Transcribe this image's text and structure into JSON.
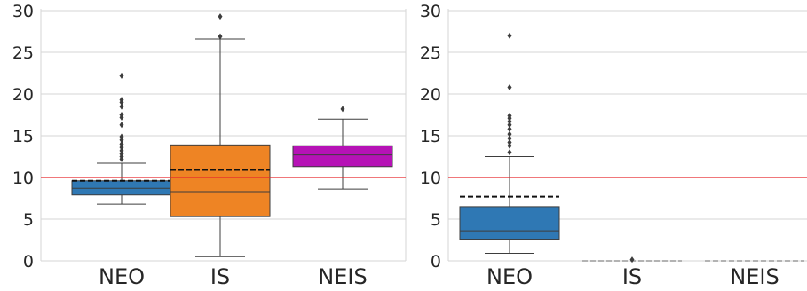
{
  "chart_data": [
    {
      "type": "box",
      "categories": [
        "NEO",
        "IS",
        "NEIS"
      ],
      "yticks": [
        0,
        5,
        10,
        15,
        20,
        25,
        30
      ],
      "ylim": [
        0,
        30
      ],
      "grid": true,
      "reference_line": {
        "y": 10,
        "color": "#e8262a"
      },
      "colors": [
        "#2f78b4",
        "#ee8424",
        "#b612b6"
      ],
      "boxes": [
        {
          "category": "NEO",
          "whisker_low": 6.8,
          "q1": 7.9,
          "median": 8.7,
          "q3": 9.6,
          "whisker_high": 11.7,
          "mean": 9.6,
          "outliers": [
            12.2,
            12.5,
            12.8,
            13.2,
            13.6,
            14.0,
            14.5,
            14.9,
            16.3,
            17.2,
            17.5,
            18.5,
            19.0,
            19.3,
            22.2
          ]
        },
        {
          "category": "IS",
          "whisker_low": 0.5,
          "q1": 5.3,
          "median": 8.3,
          "q3": 13.9,
          "whisker_high": 26.6,
          "mean": 10.9,
          "outliers": [
            26.9,
            29.3
          ]
        },
        {
          "category": "NEIS",
          "whisker_low": 8.6,
          "q1": 11.3,
          "median": 12.7,
          "q3": 13.8,
          "whisker_high": 17.0,
          "mean": null,
          "outliers": [
            18.2
          ]
        }
      ]
    },
    {
      "type": "box",
      "categories": [
        "NEO",
        "IS",
        "NEIS"
      ],
      "yticks": [
        0,
        5,
        10,
        15,
        20,
        25,
        30
      ],
      "ylim": [
        0,
        30
      ],
      "grid": true,
      "reference_line": {
        "y": 10,
        "color": "#e8262a"
      },
      "colors": [
        "#2f78b4",
        "#ee8424",
        "#b612b6"
      ],
      "boxes": [
        {
          "category": "NEO",
          "whisker_low": 0.9,
          "q1": 2.6,
          "median": 3.6,
          "q3": 6.5,
          "whisker_high": 12.5,
          "mean": 7.7,
          "outliers": [
            13.0,
            13.8,
            14.2,
            14.7,
            15.2,
            15.8,
            16.3,
            16.7,
            17.1,
            17.4,
            20.8,
            27.0
          ]
        },
        {
          "category": "IS",
          "whisker_low": 0,
          "q1": 0,
          "median": 0,
          "q3": 0,
          "whisker_high": 0,
          "mean": 0,
          "outliers": [
            0.15
          ]
        },
        {
          "category": "NEIS",
          "whisker_low": 0,
          "q1": 0,
          "median": 0,
          "q3": 0,
          "whisker_high": 0,
          "mean": 0,
          "outliers": []
        }
      ]
    }
  ]
}
